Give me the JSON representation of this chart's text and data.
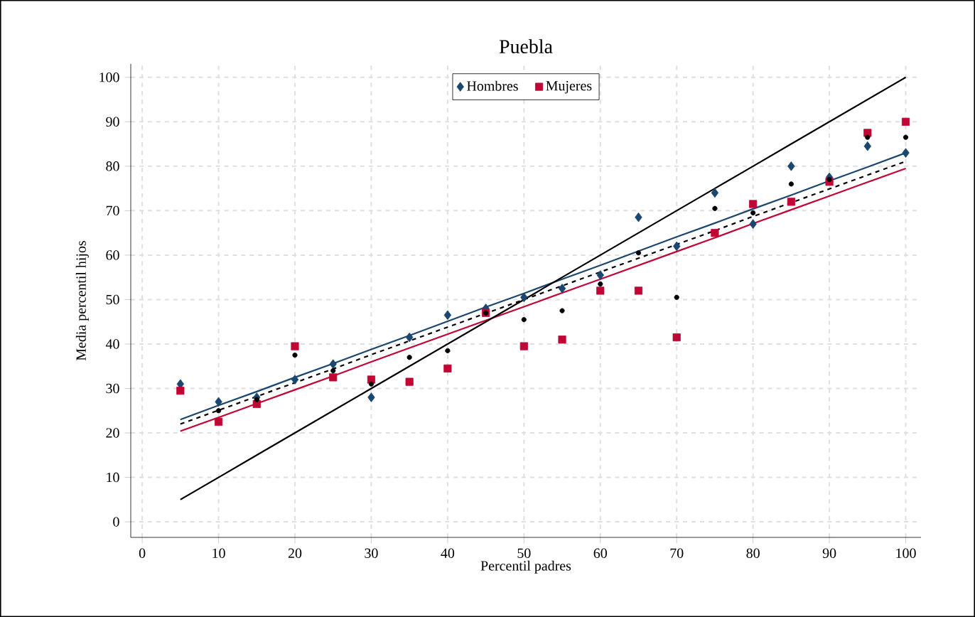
{
  "chart_data": {
    "type": "scatter",
    "title": "Puebla",
    "xlabel": "Percentil padres",
    "ylabel": "Media percentil hijos",
    "x": [
      5,
      10,
      15,
      20,
      25,
      30,
      35,
      40,
      45,
      50,
      55,
      60,
      65,
      70,
      75,
      80,
      85,
      90,
      95,
      100
    ],
    "series": [
      {
        "name": "Hombres",
        "color": "#1a476f",
        "marker": "diamond",
        "values": [
          31,
          27,
          28,
          32,
          35.5,
          28,
          41.5,
          46.5,
          48,
          50.5,
          52.5,
          55.5,
          68.5,
          62,
          74,
          67,
          80,
          77.5,
          84.5,
          83
        ]
      },
      {
        "name": "Mujeres",
        "color": "#c10534",
        "marker": "square",
        "values": [
          29.5,
          22.5,
          26.5,
          39.5,
          32.5,
          32,
          31.5,
          34.5,
          47,
          39.5,
          41,
          52,
          52,
          41.5,
          65,
          71.5,
          72,
          76.5,
          87.5,
          90
        ]
      },
      {
        "color": "#000000",
        "marker": "circle",
        "values": [
          null,
          25,
          27.5,
          37.5,
          34,
          31,
          37,
          38.5,
          47,
          45.5,
          47.5,
          53.5,
          60.5,
          50.5,
          70.5,
          69.5,
          76,
          77,
          86.5,
          86.5
        ]
      },
      {
        "type": "line",
        "color": "#1a476f",
        "marker": "none",
        "line_style": "solid",
        "values": [
          23,
          26.2,
          29.3,
          32.5,
          35.6,
          38.8,
          41.9,
          45.1,
          48.3,
          51.4,
          54.6,
          57.7,
          60.9,
          64.1,
          67.2,
          70.4,
          73.5,
          76.7,
          79.8,
          83
        ]
      },
      {
        "type": "line",
        "color": "#c10534",
        "marker": "none",
        "line_style": "solid",
        "values": [
          20.4,
          23.5,
          26.6,
          29.7,
          32.8,
          36,
          39.1,
          42.2,
          45.3,
          48.4,
          51.5,
          54.6,
          57.7,
          60.8,
          63.9,
          67.1,
          70.2,
          73.3,
          76.4,
          79.5
        ]
      },
      {
        "type": "line",
        "color": "#000000",
        "marker": "none",
        "line_style": "dashed",
        "values": [
          22,
          25.1,
          28.2,
          31.3,
          34.4,
          37.6,
          40.7,
          43.8,
          46.9,
          50,
          53.1,
          56.2,
          59.3,
          62.4,
          65.5,
          68.7,
          71.8,
          74.9,
          78,
          81.1
        ]
      },
      {
        "type": "line",
        "color": "#000000",
        "marker": "none",
        "line_style": "solid",
        "values": [
          5,
          10,
          15,
          20,
          25,
          30,
          35,
          40,
          45,
          50,
          55,
          60,
          65,
          70,
          75,
          80,
          85,
          90,
          95,
          100
        ]
      }
    ],
    "xlim": [
      -1.5,
      102
    ],
    "ylim": [
      -3.5,
      103
    ],
    "xticks": [
      0,
      10,
      20,
      30,
      40,
      50,
      60,
      70,
      80,
      90,
      100
    ],
    "yticks": [
      0,
      10,
      20,
      30,
      40,
      50,
      60,
      70,
      80,
      90,
      100
    ],
    "grid": true,
    "legend": "top"
  }
}
